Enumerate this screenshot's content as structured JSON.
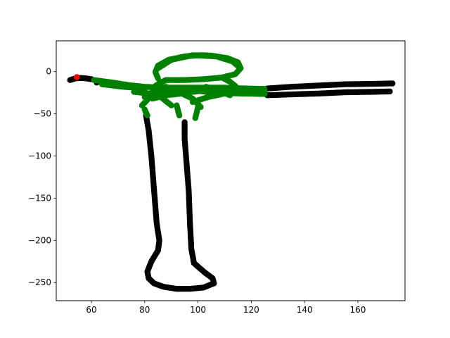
{
  "chart_data": {
    "type": "scatter",
    "title": "",
    "xlabel": "",
    "ylabel": "",
    "xlim": [
      46.8,
      177.7
    ],
    "ylim": [
      -271.5,
      36.5
    ],
    "x_ticks": [
      {
        "value": 60,
        "label": "60"
      },
      {
        "value": 80,
        "label": "80"
      },
      {
        "value": 100,
        "label": "100"
      },
      {
        "value": 120,
        "label": "120"
      },
      {
        "value": 140,
        "label": "140"
      },
      {
        "value": 160,
        "label": "160"
      }
    ],
    "y_ticks": [
      {
        "value": 0,
        "label": "0"
      },
      {
        "value": -50,
        "label": "−50"
      },
      {
        "value": -100,
        "label": "−100"
      },
      {
        "value": -150,
        "label": "−150"
      },
      {
        "value": -200,
        "label": "−200"
      },
      {
        "value": -250,
        "label": "−250"
      }
    ],
    "grid": false,
    "legend": "none",
    "series": [
      {
        "color": "#000000",
        "paths": [
          [
            [
              52,
              -10
            ],
            [
              54,
              -8
            ],
            [
              56,
              -7.5
            ],
            [
              58,
              -8
            ],
            [
              60,
              -9
            ]
          ],
          [
            [
              62,
              -13
            ]
          ],
          [
            [
              126,
              -28
            ],
            [
              135,
              -27
            ],
            [
              145,
              -26
            ],
            [
              155,
              -24.5
            ],
            [
              165,
              -24
            ],
            [
              172,
              -23.5
            ]
          ],
          [
            [
              126,
              -20
            ],
            [
              135,
              -18
            ],
            [
              145,
              -16.5
            ],
            [
              155,
              -15
            ],
            [
              165,
              -14.5
            ],
            [
              173,
              -14
            ]
          ],
          [
            [
              80.5,
              -52
            ],
            [
              81.5,
              -70
            ],
            [
              82.5,
              -100
            ],
            [
              83.5,
              -140
            ],
            [
              84.5,
              -180
            ],
            [
              85.5,
              -200
            ],
            [
              85,
              -212
            ],
            [
              82.5,
              -225
            ],
            [
              81,
              -237
            ],
            [
              81.5,
              -245
            ],
            [
              83.5,
              -251
            ],
            [
              87,
              -255
            ],
            [
              92,
              -257.5
            ],
            [
              97,
              -257.5
            ],
            [
              102,
              -256
            ],
            [
              106,
              -251
            ],
            [
              105.5,
              -245
            ],
            [
              102.5,
              -238
            ],
            [
              98.5,
              -227
            ],
            [
              97.5,
              -210
            ],
            [
              97,
              -180
            ],
            [
              96.5,
              -140
            ],
            [
              95.5,
              -100
            ],
            [
              95,
              -80
            ],
            [
              95,
              -60
            ]
          ]
        ]
      },
      {
        "color": "#008000",
        "paths": [
          [
            [
              61,
              -10
            ],
            [
              68,
              -13
            ],
            [
              74,
              -16
            ],
            [
              80,
              -18
            ],
            [
              86,
              -19
            ],
            [
              94,
              -19
            ],
            [
              101,
              -19
            ],
            [
              110,
              -19
            ],
            [
              118,
              -20
            ],
            [
              125,
              -20.5
            ]
          ],
          [
            [
              64,
              -15
            ],
            [
              72,
              -18
            ],
            [
              80,
              -20
            ]
          ],
          [
            [
              98,
              -22
            ],
            [
              106,
              -25
            ],
            [
              116,
              -26
            ],
            [
              125,
              -26.5
            ]
          ],
          [
            [
              80,
              -30
            ],
            [
              84,
              -22
            ],
            [
              88,
              -18
            ]
          ],
          [
            [
              103,
              -18
            ],
            [
              107,
              -22
            ],
            [
              112,
              -28
            ]
          ],
          [
            [
              79,
              -40
            ],
            [
              82,
              -30
            ],
            [
              86,
              -24
            ],
            [
              90,
              -22
            ],
            [
              95,
              -22
            ]
          ],
          [
            [
              90,
              -22
            ],
            [
              94,
              -26
            ],
            [
              98,
              -32
            ],
            [
              101,
              -42
            ]
          ],
          [
            [
              83,
              -32
            ],
            [
              88,
              -28
            ],
            [
              94,
              -26
            ],
            [
              98,
              -24
            ],
            [
              104,
              -22
            ]
          ],
          [
            [
              76,
              -24
            ],
            [
              82,
              -26
            ],
            [
              86,
              -30
            ],
            [
              90,
              -40
            ]
          ],
          [
            [
              98,
              -36
            ],
            [
              104,
              -30
            ],
            [
              110,
              -26
            ],
            [
              118,
              -24
            ],
            [
              125,
              -23
            ]
          ],
          [
            [
              80,
              -45
            ],
            [
              81,
              -52
            ]
          ],
          [
            [
              92,
              -40
            ],
            [
              93,
              -52
            ]
          ],
          [
            [
              100,
              -42
            ],
            [
              99,
              -55
            ]
          ],
          [
            [
              85,
              -8
            ],
            [
              84,
              -0.5
            ],
            [
              85,
              7
            ],
            [
              89,
              14
            ],
            [
              95,
              18
            ],
            [
              101,
              19.5
            ],
            [
              105,
              19
            ],
            [
              111,
              16
            ],
            [
              115,
              11
            ],
            [
              116,
              4
            ],
            [
              114,
              -3
            ],
            [
              109,
              -7
            ],
            [
              102,
              -9
            ],
            [
              95,
              -10
            ],
            [
              88,
              -10
            ]
          ],
          [
            [
              88,
              -10
            ],
            [
              86,
              -13
            ],
            [
              84,
              -17
            ]
          ],
          [
            [
              109,
              -7
            ],
            [
              112,
              -12
            ],
            [
              114,
              -17
            ]
          ],
          [
            [
              85,
              4
            ],
            [
              90,
              14
            ],
            [
              98,
              19.5
            ],
            [
              107,
              18
            ],
            [
              113,
              12
            ],
            [
              116,
              4
            ]
          ]
        ]
      },
      {
        "color": "#ff0000",
        "paths": [
          [
            [
              54.5,
              -6.5
            ]
          ]
        ]
      }
    ]
  }
}
